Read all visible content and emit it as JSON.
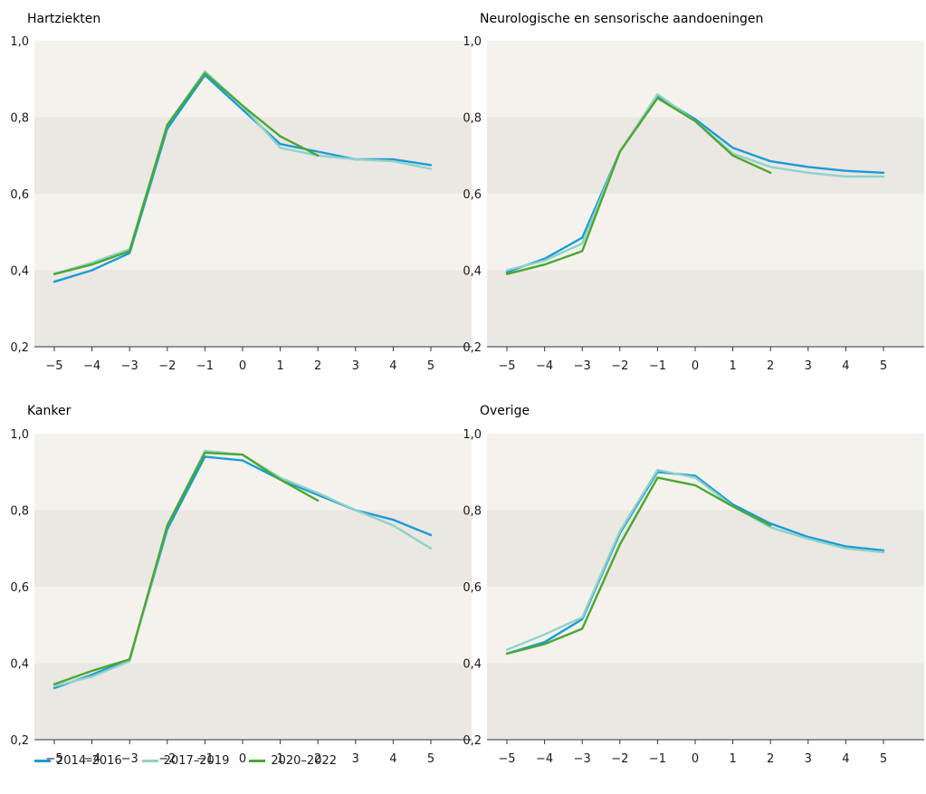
{
  "chart_data": [
    {
      "type": "line",
      "title": "Hartziekten",
      "x": [
        -5,
        -4,
        -3,
        -2,
        -1,
        0,
        1,
        2,
        3,
        4,
        5
      ],
      "ylim": [
        0.2,
        1.0
      ],
      "yticks": [
        "0,2",
        "0,4",
        "0,6",
        "0,8",
        "1,0"
      ],
      "series": [
        {
          "name": "2014-2016",
          "values": [
            0.37,
            0.4,
            0.445,
            0.77,
            0.91,
            0.82,
            0.73,
            0.71,
            0.69,
            0.69,
            0.675
          ]
        },
        {
          "name": "2017-2019",
          "values": [
            0.39,
            0.42,
            0.455,
            0.78,
            0.92,
            0.83,
            0.72,
            0.7,
            0.69,
            0.685,
            0.665
          ]
        },
        {
          "name": "2020-2022",
          "values": [
            0.39,
            0.415,
            0.45,
            0.78,
            0.915,
            0.83,
            0.75,
            0.7,
            null,
            null,
            null
          ]
        }
      ]
    },
    {
      "type": "line",
      "title": "Neurologische en sensorische aandoeningen",
      "x": [
        -5,
        -4,
        -3,
        -2,
        -1,
        0,
        1,
        2,
        3,
        4,
        5
      ],
      "ylim": [
        0.2,
        1.0
      ],
      "yticks": [
        "0,2",
        "0,4",
        "0,6",
        "0,8",
        "1,0"
      ],
      "series": [
        {
          "name": "2014-2016",
          "values": [
            0.395,
            0.43,
            0.485,
            0.71,
            0.855,
            0.795,
            0.72,
            0.685,
            0.67,
            0.66,
            0.655
          ]
        },
        {
          "name": "2017-2019",
          "values": [
            0.4,
            0.425,
            0.47,
            0.71,
            0.86,
            0.79,
            0.705,
            0.67,
            0.655,
            0.645,
            0.645
          ]
        },
        {
          "name": "2020-2022",
          "values": [
            0.39,
            0.415,
            0.45,
            0.71,
            0.85,
            0.79,
            0.7,
            0.655,
            null,
            null,
            null
          ]
        }
      ]
    },
    {
      "type": "line",
      "title": "Kanker",
      "x": [
        -5,
        -4,
        -3,
        -2,
        -1,
        0,
        1,
        2,
        3,
        4,
        5
      ],
      "ylim": [
        0.2,
        1.0
      ],
      "yticks": [
        "0,2",
        "0,4",
        "0,6",
        "0,8",
        "1,0"
      ],
      "series": [
        {
          "name": "2014-2016",
          "values": [
            0.335,
            0.37,
            0.41,
            0.75,
            0.94,
            0.93,
            0.88,
            0.84,
            0.8,
            0.775,
            0.735
          ]
        },
        {
          "name": "2017-2019",
          "values": [
            0.34,
            0.365,
            0.405,
            0.76,
            0.955,
            0.945,
            0.885,
            0.845,
            0.8,
            0.76,
            0.7
          ]
        },
        {
          "name": "2020-2022",
          "values": [
            0.345,
            0.38,
            0.41,
            0.76,
            0.95,
            0.945,
            0.88,
            0.825,
            null,
            null,
            null
          ]
        }
      ]
    },
    {
      "type": "line",
      "title": "Overige",
      "x": [
        -5,
        -4,
        -3,
        -2,
        -1,
        0,
        1,
        2,
        3,
        4,
        5
      ],
      "ylim": [
        0.2,
        1.0
      ],
      "yticks": [
        "0,2",
        "0,4",
        "0,6",
        "0,8",
        "1,0"
      ],
      "series": [
        {
          "name": "2014-2016",
          "values": [
            0.425,
            0.455,
            0.515,
            0.74,
            0.9,
            0.89,
            0.815,
            0.765,
            0.73,
            0.705,
            0.695
          ]
        },
        {
          "name": "2017-2019",
          "values": [
            0.435,
            0.475,
            0.52,
            0.745,
            0.905,
            0.885,
            0.81,
            0.755,
            0.725,
            0.7,
            0.69
          ]
        },
        {
          "name": "2020-2022",
          "values": [
            0.425,
            0.45,
            0.49,
            0.71,
            0.885,
            0.865,
            0.81,
            0.76,
            null,
            null,
            null
          ]
        }
      ]
    }
  ],
  "legend": [
    {
      "label": "2014–2016",
      "color": "#1a9bd7"
    },
    {
      "label": "2017–2019",
      "color": "#8fd3c8"
    },
    {
      "label": "2020–2022",
      "color": "#4ba82e"
    }
  ],
  "colors": {
    "band_light": "#f5f2ee",
    "band_dark": "#ebe7e3",
    "axis": "#333333"
  }
}
